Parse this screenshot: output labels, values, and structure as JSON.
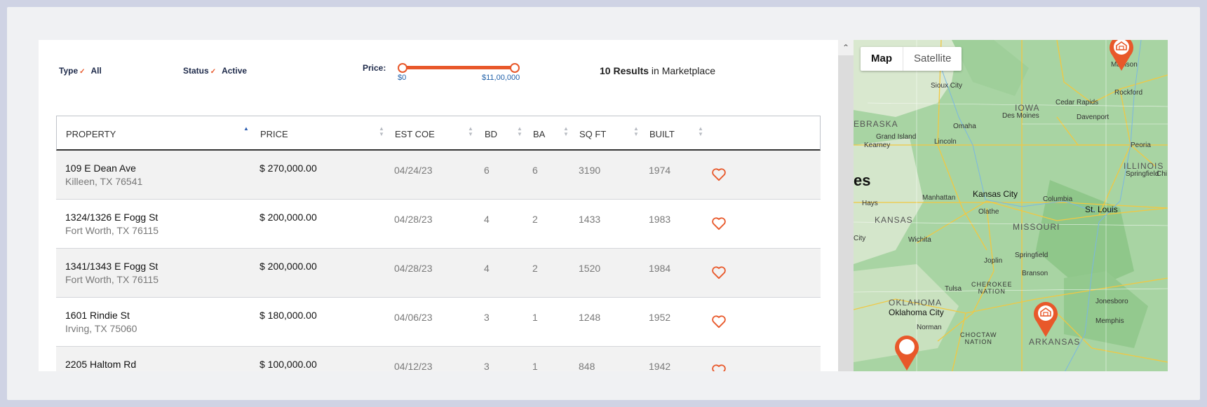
{
  "filters": {
    "type_label": "Type",
    "type_value": "All",
    "status_label": "Status",
    "status_value": "Active",
    "price_label": "Price:",
    "price_min": "$0",
    "price_max": "$11,00,000",
    "results_count": "10 Results",
    "results_suffix": " in Marketplace"
  },
  "table": {
    "columns": [
      "PROPERTY",
      "PRICE",
      "EST COE",
      "BD",
      "BA",
      "SQ FT",
      "BUILT"
    ],
    "rows": [
      {
        "addr1": "109 E Dean Ave",
        "addr2": "Killeen, TX 76541",
        "price": "$ 270,000.00",
        "coe": "04/24/23",
        "bd": "6",
        "ba": "6",
        "sqft": "3190",
        "built": "1974"
      },
      {
        "addr1": "1324/1326 E Fogg St",
        "addr2": "Fort Worth, TX 76115",
        "price": "$ 200,000.00",
        "coe": "04/28/23",
        "bd": "4",
        "ba": "2",
        "sqft": "1433",
        "built": "1983"
      },
      {
        "addr1": "1341/1343 E Fogg St",
        "addr2": "Fort Worth, TX 76115",
        "price": "$ 200,000.00",
        "coe": "04/28/23",
        "bd": "4",
        "ba": "2",
        "sqft": "1520",
        "built": "1984"
      },
      {
        "addr1": "1601 Rindie St",
        "addr2": "Irving, TX 75060",
        "price": "$ 180,000.00",
        "coe": "04/06/23",
        "bd": "3",
        "ba": "1",
        "sqft": "1248",
        "built": "1952"
      },
      {
        "addr1": "2205 Haltom Rd",
        "addr2": "",
        "price": "$ 100,000.00",
        "coe": "04/12/23",
        "bd": "3",
        "ba": "1",
        "sqft": "848",
        "built": "1942"
      }
    ]
  },
  "map": {
    "tab_map": "Map",
    "tab_satellite": "Satellite",
    "labels": {
      "sioux_city": "Sioux City",
      "iowa": "IOWA",
      "cedar_rapids": "Cedar Rapids",
      "rockford": "Rockford",
      "madison": "Madison",
      "des_moines": "Des Moines",
      "davenport": "Davenport",
      "nebraska": "EBRASKA",
      "omaha": "Omaha",
      "grand_island": "Grand Island",
      "lincoln": "Lincoln",
      "kearney": "Kearney",
      "peoria": "Peoria",
      "illinois": "ILLINOIS",
      "springfield_il": "Springfield",
      "es": "es",
      "kansas_city": "Kansas City",
      "manhattan": "Manhattan",
      "olathe": "Olathe",
      "columbia": "Columbia",
      "st_louis": "St. Louis",
      "hays": "Hays",
      "kansas": "KANSAS",
      "missouri": "MISSOURI",
      "city": "City",
      "wichita": "Wichita",
      "joplin": "Joplin",
      "springfield_mo": "Springfield",
      "branson": "Branson",
      "tulsa": "Tulsa",
      "cherokee_nation": "CHEROKEE\nNATION",
      "oklahoma": "OKLAHOMA",
      "oklahoma_city": "Oklahoma City",
      "jonesboro": "Jonesboro",
      "memphis": "Memphis",
      "norman": "Norman",
      "choctaw_nation": "CHOCTAW\nNATION",
      "arkansas": "ARKANSAS",
      "chi": "Chi"
    }
  },
  "colors": {
    "accent": "#e8582a",
    "link": "#1f5fa8",
    "map_green": "#a9d4a3"
  }
}
